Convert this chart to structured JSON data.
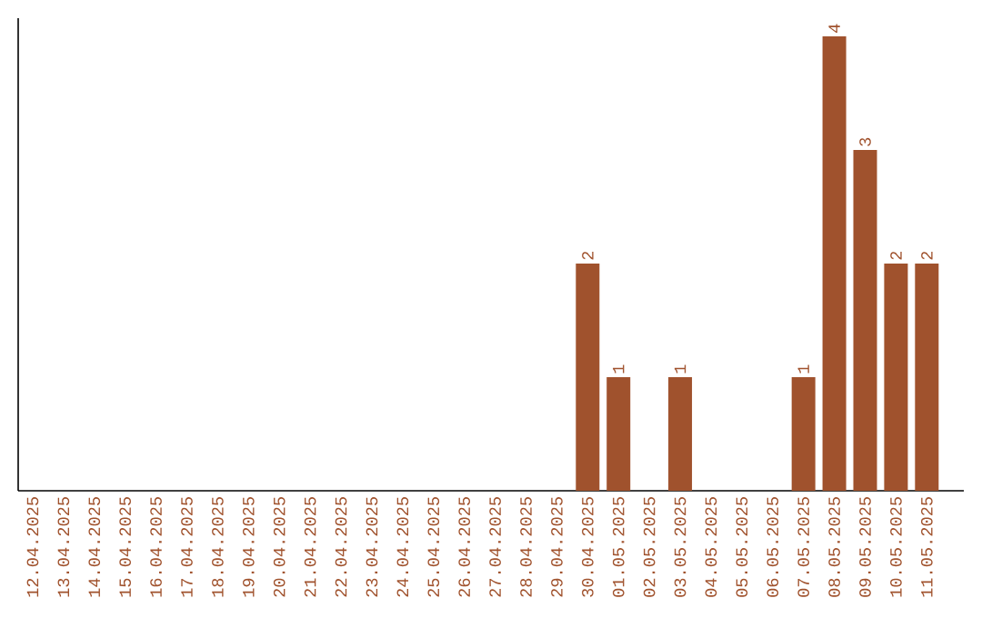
{
  "chart_data": {
    "type": "bar",
    "categories": [
      "12.04.2025",
      "13.04.2025",
      "14.04.2025",
      "15.04.2025",
      "16.04.2025",
      "17.04.2025",
      "18.04.2025",
      "19.04.2025",
      "20.04.2025",
      "21.04.2025",
      "22.04.2025",
      "23.04.2025",
      "24.04.2025",
      "25.04.2025",
      "26.04.2025",
      "27.04.2025",
      "28.04.2025",
      "29.04.2025",
      "30.04.2025",
      "01.05.2025",
      "02.05.2025",
      "03.05.2025",
      "04.05.2025",
      "05.05.2025",
      "06.05.2025",
      "07.05.2025",
      "08.05.2025",
      "09.05.2025",
      "10.05.2025",
      "11.05.2025"
    ],
    "values": [
      null,
      null,
      null,
      null,
      null,
      null,
      null,
      null,
      null,
      null,
      null,
      null,
      null,
      null,
      null,
      null,
      null,
      null,
      2,
      1,
      null,
      1,
      null,
      null,
      null,
      1,
      4,
      3,
      2,
      2
    ],
    "data_labels": true,
    "color": "#a0522d",
    "ylim": [
      0,
      4.16
    ]
  }
}
